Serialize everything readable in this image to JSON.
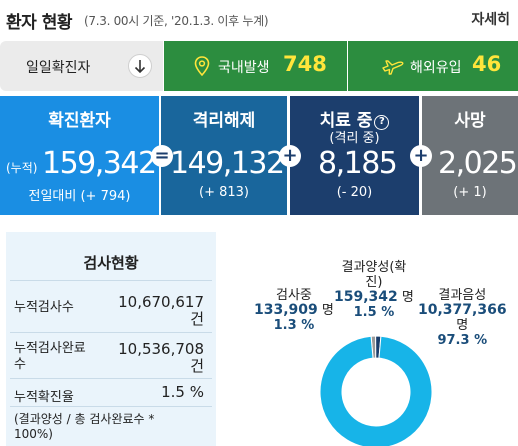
{
  "header": {
    "title": "환자 현황",
    "subtitle": "(7.3. 00시 기준, '20.1.3. 이후 누계)",
    "more_label": "자세히"
  },
  "daily": {
    "label": "일일확진자",
    "domestic": {
      "label": "국내발생",
      "value": "748",
      "icon": "location-pin-icon"
    },
    "overseas": {
      "label": "해외유입",
      "value": "46",
      "icon": "airplane-icon"
    }
  },
  "stats": {
    "confirmed": {
      "title": "확진환자",
      "prefix": "(누적)",
      "value": "159,342",
      "delta": "전일대비 (+ 794)"
    },
    "released": {
      "title": "격리해제",
      "value": "149,132",
      "delta": "(+ 813)"
    },
    "treating": {
      "title": "치료 중",
      "subtitle": "(격리 중)",
      "help": "?",
      "value": "8,185",
      "delta": "(- 20)"
    },
    "deaths": {
      "title": "사망",
      "value": "2,025",
      "delta": "(+ 1)"
    },
    "ops": {
      "eq": "=",
      "plus1": "+",
      "plus2": "+"
    }
  },
  "tests": {
    "title": "검사현황",
    "rows": [
      {
        "label": "누적검사수",
        "value": "10,670,617",
        "unit": "건"
      },
      {
        "label": "누적검사완료",
        "label2": "수",
        "value": "10,536,708",
        "unit": "건"
      },
      {
        "label": "누적확진율",
        "value": "1.5 %"
      }
    ],
    "note": "(결과양성 / 총 검사완료수 *",
    "note2": "100%)"
  },
  "donut": {
    "testing": {
      "label": "검사중",
      "value": "133,909",
      "unit": "명",
      "pct": "1.3 %"
    },
    "positive": {
      "label": "결과양성(확",
      "label2": "진)",
      "value": "159,342",
      "unit": "명",
      "pct": "1.5 %"
    },
    "negative": {
      "label": "결과음성",
      "value": "10,377,366",
      "unit": "명",
      "pct": "97.3 %"
    }
  },
  "chart_data": {
    "type": "pie",
    "categories": [
      "검사중",
      "결과양성(확진)",
      "결과음성"
    ],
    "values": [
      1.3,
      1.5,
      97.3
    ],
    "colors": [
      "#9a9a9a",
      "#1a3d6b",
      "#17b4e8"
    ]
  },
  "colors": {
    "confirmed": "#1a8ee3",
    "released": "#19669c",
    "treating": "#1c3e6d",
    "deaths": "#6d7378",
    "daily_green": "#2c8d3f",
    "daily_value": "#ffe53b"
  }
}
